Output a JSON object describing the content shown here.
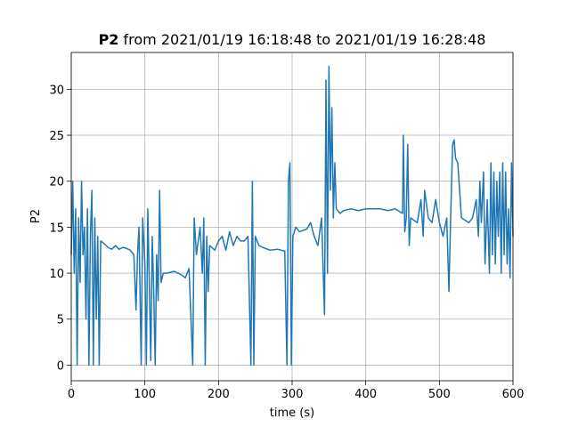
{
  "chart_data": {
    "type": "line",
    "title_parts": [
      "P2",
      "from 2021/01/19 16:18:48 to 2021/01/19 16:28:48"
    ],
    "xlabel": "time (s)",
    "ylabel": "P2",
    "x": [
      0,
      2,
      4,
      6,
      8,
      10,
      12,
      14,
      16,
      18,
      20,
      22,
      24,
      26,
      28,
      30,
      32,
      34,
      36,
      38,
      40,
      45,
      50,
      55,
      60,
      65,
      70,
      75,
      80,
      85,
      88,
      90,
      92,
      95,
      97,
      100,
      102,
      104,
      106,
      108,
      110,
      112,
      114,
      116,
      118,
      120,
      122,
      125,
      130,
      140,
      150,
      155,
      160,
      165,
      167,
      170,
      175,
      178,
      180,
      182,
      184,
      186,
      188,
      195,
      200,
      205,
      210,
      215,
      220,
      225,
      230,
      235,
      240,
      244,
      246,
      248,
      250,
      255,
      260,
      270,
      280,
      290,
      293,
      295,
      297,
      299,
      301,
      305,
      310,
      320,
      325,
      330,
      335,
      340,
      344,
      346,
      348,
      350,
      352,
      354,
      356,
      358,
      360,
      365,
      370,
      380,
      390,
      400,
      410,
      420,
      430,
      440,
      450,
      451,
      453,
      455,
      457,
      459,
      461,
      470,
      475,
      478,
      480,
      485,
      490,
      495,
      500,
      505,
      510,
      513,
      515,
      518,
      520,
      522,
      525,
      530,
      540,
      545,
      550,
      553,
      555,
      557,
      560,
      562,
      565,
      568,
      570,
      572,
      574,
      576,
      578,
      580,
      582,
      584,
      586,
      588,
      590,
      592,
      594,
      596,
      598,
      600
    ],
    "series": [
      {
        "color": "#1f77b4",
        "values": [
          12,
          20,
          10,
          17,
          0,
          16,
          9,
          20,
          12,
          15,
          5,
          17,
          0,
          14,
          19,
          0,
          16,
          5,
          14,
          0,
          13.5,
          13.2,
          12.8,
          12.6,
          13,
          12.6,
          12.8,
          12.7,
          12.5,
          12,
          6,
          12,
          15,
          0,
          16,
          11,
          0,
          17,
          9,
          0.5,
          14,
          8,
          0,
          12,
          7,
          19,
          9,
          10,
          10,
          10.2,
          9.8,
          9.5,
          10.5,
          0,
          16,
          12,
          15,
          10,
          16,
          0,
          14,
          8,
          13,
          12.5,
          13.5,
          14,
          12.5,
          14.5,
          13,
          14,
          13.5,
          13.5,
          14,
          0,
          20,
          0,
          14,
          13,
          12.8,
          12.5,
          12.6,
          12.4,
          0,
          20,
          22,
          0,
          14,
          15,
          14.5,
          14.8,
          15.5,
          14,
          13,
          16,
          5.5,
          31,
          10,
          32.5,
          19,
          28,
          16,
          22,
          17,
          16.5,
          16.8,
          17,
          16.8,
          17,
          17,
          17,
          16.8,
          17,
          16.5,
          25,
          14.5,
          16,
          24,
          13,
          16,
          15.5,
          18,
          14,
          19,
          16,
          15.5,
          18,
          15.5,
          14,
          16,
          8,
          15,
          24,
          24.5,
          22.5,
          22,
          16,
          15.5,
          16,
          18,
          14,
          20,
          15.5,
          21,
          11,
          18,
          10,
          22,
          12,
          21,
          11,
          20,
          14,
          21,
          10,
          22,
          12,
          21,
          11,
          17,
          9.5,
          22,
          14
        ]
      }
    ],
    "xlim": [
      0,
      600
    ],
    "xticks": [
      0,
      100,
      200,
      300,
      400,
      500,
      600
    ],
    "ylim": [
      -1.7,
      34
    ],
    "yticks": [
      0,
      5,
      10,
      15,
      20,
      25,
      30
    ],
    "grid": true
  }
}
